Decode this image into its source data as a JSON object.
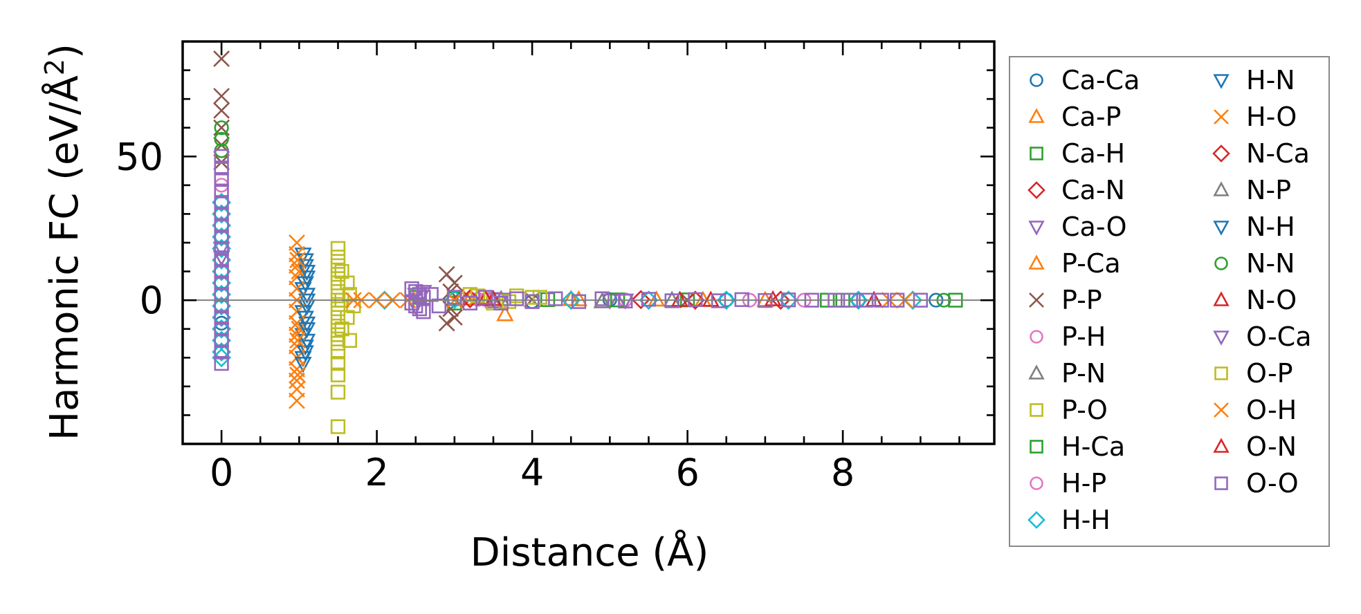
{
  "chart_data": {
    "type": "scatter",
    "xlabel": "Distance (Å)",
    "ylabel_main": "Harmonic FC (eV/Å",
    "ylabel_sup": "2",
    "ylabel_close": ")",
    "xlim": [
      -0.5,
      9.95
    ],
    "ylim": [
      -50,
      90
    ],
    "x_ticks": [
      {
        "value": 0,
        "label": "0"
      },
      {
        "value": 2,
        "label": "2"
      },
      {
        "value": 4,
        "label": "4"
      },
      {
        "value": 6,
        "label": "6"
      },
      {
        "value": 8,
        "label": "8"
      }
    ],
    "y_ticks": [
      {
        "value": 0,
        "label": "0"
      },
      {
        "value": 50,
        "label": "50"
      }
    ],
    "zero_line": true,
    "grid": false,
    "legend_position": "outside-right",
    "series": [
      {
        "name": "Ca-Ca",
        "marker": "circle",
        "color": "#1f77b4",
        "points": [
          [
            0.0,
            22.0
          ],
          [
            0.0,
            -8.0
          ],
          [
            3.3,
            0.3
          ],
          [
            4.0,
            -0.5
          ],
          [
            5.0,
            0.2
          ],
          [
            6.5,
            0.1
          ],
          [
            8.2,
            0.0
          ],
          [
            9.2,
            0.0
          ]
        ]
      },
      {
        "name": "Ca-P",
        "marker": "triangle-up",
        "color": "#ff7f0e",
        "points": [
          [
            3.2,
            0.5
          ],
          [
            3.65,
            -5.0
          ],
          [
            4.5,
            0.3
          ],
          [
            5.6,
            0.1
          ],
          [
            7.0,
            0.0
          ]
        ]
      },
      {
        "name": "Ca-H",
        "marker": "square",
        "color": "#2ca02c",
        "points": [
          [
            2.5,
            1.0
          ],
          [
            3.0,
            -1.0
          ],
          [
            4.2,
            0.2
          ],
          [
            6.0,
            0.1
          ],
          [
            8.0,
            0.0
          ],
          [
            9.45,
            0.0
          ]
        ]
      },
      {
        "name": "Ca-N",
        "marker": "diamond",
        "color": "#d62728",
        "points": [
          [
            3.1,
            0.5
          ],
          [
            5.4,
            0.2
          ],
          [
            7.2,
            0.0
          ]
        ]
      },
      {
        "name": "Ca-O",
        "marker": "triangle-down",
        "color": "#9467bd",
        "points": [
          [
            0.0,
            18.0
          ],
          [
            2.5,
            -2.0
          ],
          [
            2.6,
            3.0
          ],
          [
            3.5,
            0.5
          ],
          [
            5.0,
            0.0
          ]
        ]
      },
      {
        "name": "P-Ca",
        "marker": "triangle-up",
        "color": "#ff7f0e",
        "points": [
          [
            3.3,
            0.5
          ],
          [
            4.6,
            0.2
          ],
          [
            6.2,
            0.0
          ]
        ]
      },
      {
        "name": "P-P",
        "marker": "x",
        "color": "#8c564b",
        "points": [
          [
            0.0,
            84.0
          ],
          [
            0.0,
            71.0
          ],
          [
            0.0,
            66.0
          ],
          [
            0.0,
            60.0
          ],
          [
            0.0,
            54.0
          ],
          [
            0.0,
            48.0
          ],
          [
            2.9,
            9.0
          ],
          [
            3.0,
            6.0
          ],
          [
            2.95,
            3.0
          ],
          [
            2.9,
            -8.0
          ],
          [
            3.0,
            -6.0
          ],
          [
            2.95,
            -3.0
          ],
          [
            4.0,
            0.2
          ],
          [
            6.0,
            0.0
          ]
        ]
      },
      {
        "name": "P-H",
        "marker": "circle",
        "color": "#e377c2",
        "points": [
          [
            0.0,
            30.0
          ],
          [
            3.3,
            0.3
          ],
          [
            5.2,
            0.1
          ],
          [
            7.5,
            0.0
          ]
        ]
      },
      {
        "name": "P-N",
        "marker": "triangle-up",
        "color": "#7f7f7f",
        "points": [
          [
            3.5,
            -0.5
          ],
          [
            5.8,
            0.0
          ]
        ]
      },
      {
        "name": "P-O",
        "marker": "square",
        "color": "#bcbd22",
        "points": [
          [
            1.5,
            18.0
          ],
          [
            1.5,
            15.0
          ],
          [
            1.5,
            12.0
          ],
          [
            1.5,
            9.0
          ],
          [
            1.5,
            6.0
          ],
          [
            1.5,
            3.0
          ],
          [
            1.5,
            0.0
          ],
          [
            1.5,
            -3.0
          ],
          [
            1.5,
            -6.0
          ],
          [
            1.5,
            -9.0
          ],
          [
            1.5,
            -12.0
          ],
          [
            1.5,
            -15.0
          ],
          [
            1.5,
            -18.0
          ],
          [
            1.5,
            -22.0
          ],
          [
            1.5,
            -26.0
          ],
          [
            1.5,
            -32.0
          ],
          [
            1.5,
            -44.0
          ],
          [
            1.62,
            6.0
          ],
          [
            1.62,
            -6.0
          ],
          [
            1.65,
            2.0
          ],
          [
            1.65,
            -14.0
          ],
          [
            1.7,
            -2.0
          ],
          [
            3.2,
            2.0
          ],
          [
            3.5,
            -1.0
          ],
          [
            3.8,
            1.5
          ],
          [
            4.1,
            1.0
          ]
        ]
      },
      {
        "name": "H-Ca",
        "marker": "square",
        "color": "#2ca02c",
        "points": [
          [
            3.0,
            0.5
          ],
          [
            5.1,
            0.1
          ],
          [
            7.8,
            0.0
          ]
        ]
      },
      {
        "name": "H-P",
        "marker": "circle",
        "color": "#e377c2",
        "points": [
          [
            0.0,
            40.0
          ],
          [
            3.4,
            0.2
          ],
          [
            6.8,
            0.0
          ]
        ]
      },
      {
        "name": "H-H",
        "marker": "diamond",
        "color": "#17becf",
        "points": [
          [
            0.0,
            34.0
          ],
          [
            0.0,
            30.0
          ],
          [
            0.0,
            26.0
          ],
          [
            0.0,
            22.0
          ],
          [
            0.0,
            18.0
          ],
          [
            0.0,
            14.0
          ],
          [
            0.0,
            10.0
          ],
          [
            0.0,
            6.0
          ],
          [
            0.0,
            2.0
          ],
          [
            0.0,
            -2.0
          ],
          [
            0.0,
            -6.0
          ],
          [
            0.0,
            -10.0
          ],
          [
            0.0,
            -14.0
          ],
          [
            0.0,
            -18.0
          ],
          [
            0.0,
            -20.0
          ],
          [
            2.1,
            0.0
          ],
          [
            3.0,
            0.3
          ],
          [
            4.5,
            0.0
          ],
          [
            5.5,
            0.0
          ],
          [
            6.5,
            0.0
          ],
          [
            7.3,
            0.0
          ],
          [
            8.2,
            0.0
          ],
          [
            8.9,
            0.0
          ]
        ]
      },
      {
        "name": "H-N",
        "marker": "triangle-down",
        "color": "#1f77b4",
        "points": [
          [
            1.05,
            16.0
          ],
          [
            1.08,
            12.0
          ],
          [
            1.1,
            8.0
          ],
          [
            1.05,
            4.0
          ],
          [
            1.1,
            0.0
          ],
          [
            1.05,
            -4.0
          ],
          [
            1.1,
            -8.0
          ],
          [
            1.05,
            -12.0
          ],
          [
            1.08,
            -16.0
          ],
          [
            1.05,
            -20.0
          ]
        ]
      },
      {
        "name": "H-O",
        "marker": "x",
        "color": "#ff7f0e",
        "points": [
          [
            0.97,
            20.0
          ],
          [
            0.97,
            16.0
          ],
          [
            0.97,
            12.0
          ],
          [
            0.97,
            8.0
          ],
          [
            0.97,
            4.0
          ],
          [
            0.97,
            0.0
          ],
          [
            0.97,
            -4.0
          ],
          [
            0.97,
            -8.0
          ],
          [
            0.97,
            -12.0
          ],
          [
            0.97,
            -16.0
          ],
          [
            0.97,
            -20.0
          ],
          [
            0.97,
            -24.0
          ],
          [
            0.97,
            -28.0
          ],
          [
            0.97,
            -31.0
          ],
          [
            0.97,
            -35.0
          ],
          [
            1.0,
            10.0
          ],
          [
            1.0,
            -10.0
          ],
          [
            1.8,
            0.0
          ],
          [
            2.0,
            0.0
          ],
          [
            2.2,
            0.0
          ],
          [
            2.4,
            0.0
          ],
          [
            3.0,
            0.0
          ],
          [
            8.6,
            0.0
          ]
        ]
      },
      {
        "name": "N-Ca",
        "marker": "diamond",
        "color": "#d62728",
        "points": [
          [
            3.2,
            0.5
          ],
          [
            6.1,
            0.0
          ]
        ]
      },
      {
        "name": "N-P",
        "marker": "triangle-up",
        "color": "#7f7f7f",
        "points": [
          [
            3.6,
            0.3
          ],
          [
            4.9,
            -0.5
          ]
        ]
      },
      {
        "name": "N-H",
        "marker": "triangle-down",
        "color": "#1f77b4",
        "points": [
          [
            1.08,
            14.0
          ],
          [
            1.1,
            10.0
          ],
          [
            1.08,
            6.0
          ],
          [
            1.1,
            2.0
          ],
          [
            1.1,
            -2.0
          ],
          [
            1.08,
            -6.0
          ],
          [
            1.1,
            -10.0
          ],
          [
            1.1,
            -14.0
          ],
          [
            1.08,
            -18.0
          ],
          [
            1.05,
            -22.0
          ]
        ]
      },
      {
        "name": "N-N",
        "marker": "circle",
        "color": "#2ca02c",
        "points": [
          [
            0.0,
            60.0
          ],
          [
            0.0,
            56.0
          ],
          [
            0.0,
            52.0
          ],
          [
            9.3,
            0.0
          ]
        ]
      },
      {
        "name": "N-O",
        "marker": "triangle-up",
        "color": "#d62728",
        "points": [
          [
            3.4,
            0.5
          ],
          [
            5.9,
            0.0
          ],
          [
            7.1,
            0.2
          ],
          [
            8.4,
            0.0
          ]
        ]
      },
      {
        "name": "O-Ca",
        "marker": "triangle-down",
        "color": "#9467bd",
        "points": [
          [
            0.0,
            15.0
          ],
          [
            2.5,
            2.0
          ],
          [
            3.6,
            0.3
          ],
          [
            5.2,
            0.0
          ]
        ]
      },
      {
        "name": "O-P",
        "marker": "square",
        "color": "#bcbd22",
        "points": [
          [
            1.55,
            10.0
          ],
          [
            1.55,
            0.0
          ],
          [
            1.55,
            -10.0
          ],
          [
            3.3,
            1.5
          ],
          [
            3.7,
            -0.5
          ],
          [
            4.0,
            1.0
          ]
        ]
      },
      {
        "name": "O-H",
        "marker": "x",
        "color": "#ff7f0e",
        "points": [
          [
            0.98,
            14.0
          ],
          [
            0.98,
            -14.0
          ],
          [
            0.98,
            -26.0
          ],
          [
            1.7,
            0.0
          ],
          [
            8.8,
            0.0
          ]
        ]
      },
      {
        "name": "O-N",
        "marker": "triangle-up",
        "color": "#d62728",
        "points": [
          [
            3.5,
            0.3
          ],
          [
            6.3,
            0.0
          ]
        ]
      },
      {
        "name": "O-O",
        "marker": "square",
        "color": "#9467bd",
        "points": [
          [
            0.0,
            50.0
          ],
          [
            0.0,
            46.0
          ],
          [
            0.0,
            42.0
          ],
          [
            0.0,
            38.0
          ],
          [
            0.0,
            34.0
          ],
          [
            0.0,
            30.0
          ],
          [
            0.0,
            26.0
          ],
          [
            0.0,
            22.0
          ],
          [
            0.0,
            18.0
          ],
          [
            0.0,
            14.0
          ],
          [
            0.0,
            10.0
          ],
          [
            0.0,
            6.0
          ],
          [
            0.0,
            2.0
          ],
          [
            0.0,
            -2.0
          ],
          [
            0.0,
            -6.0
          ],
          [
            0.0,
            -10.0
          ],
          [
            0.0,
            -14.0
          ],
          [
            0.0,
            -18.0
          ],
          [
            0.0,
            -22.0
          ],
          [
            2.45,
            4.0
          ],
          [
            2.5,
            3.0
          ],
          [
            2.55,
            2.0
          ],
          [
            2.6,
            1.0
          ],
          [
            2.45,
            -1.0
          ],
          [
            2.5,
            -2.0
          ],
          [
            2.55,
            -3.0
          ],
          [
            2.6,
            -4.0
          ],
          [
            2.7,
            2.0
          ],
          [
            2.8,
            -2.0
          ],
          [
            3.0,
            1.0
          ],
          [
            3.2,
            -1.0
          ],
          [
            3.4,
            1.0
          ],
          [
            3.6,
            -1.0
          ],
          [
            3.8,
            0.5
          ],
          [
            4.0,
            -0.5
          ],
          [
            4.3,
            0.5
          ],
          [
            4.6,
            -0.5
          ],
          [
            4.9,
            0.5
          ],
          [
            5.2,
            -0.3
          ],
          [
            5.5,
            0.3
          ],
          [
            5.8,
            -0.2
          ],
          [
            6.1,
            0.2
          ],
          [
            6.4,
            -0.2
          ],
          [
            6.7,
            0.2
          ],
          [
            7.0,
            -0.1
          ],
          [
            7.3,
            0.1
          ],
          [
            7.6,
            0.0
          ],
          [
            7.9,
            0.0
          ],
          [
            8.1,
            0.0
          ],
          [
            8.3,
            0.0
          ],
          [
            8.5,
            0.0
          ],
          [
            8.7,
            0.0
          ],
          [
            9.0,
            0.0
          ]
        ]
      }
    ]
  }
}
